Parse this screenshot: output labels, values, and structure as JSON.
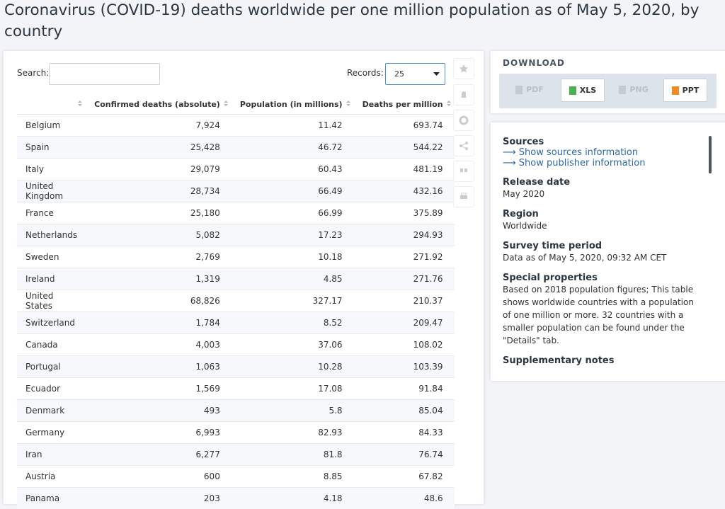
{
  "header": {
    "title": "Coronavirus (COVID-19) deaths worldwide per one million population as of May 5, 2020, by country"
  },
  "controls": {
    "search_label": "Search:",
    "records_label": "Records:",
    "records_value": "25"
  },
  "table": {
    "columns": [
      "Confirmed deaths (absolute)",
      "Population (in millions)",
      "Deaths per million"
    ],
    "rows": [
      [
        "Belgium",
        "7,924",
        "11.42",
        "693.74"
      ],
      [
        "Spain",
        "25,428",
        "46.72",
        "544.22"
      ],
      [
        "Italy",
        "29,079",
        "60.43",
        "481.19"
      ],
      [
        "United Kingdom",
        "28,734",
        "66.49",
        "432.16"
      ],
      [
        "France",
        "25,180",
        "66.99",
        "375.89"
      ],
      [
        "Netherlands",
        "5,082",
        "17.23",
        "294.93"
      ],
      [
        "Sweden",
        "2,769",
        "10.18",
        "271.92"
      ],
      [
        "Ireland",
        "1,319",
        "4.85",
        "271.76"
      ],
      [
        "United States",
        "68,826",
        "327.17",
        "210.37"
      ],
      [
        "Switzerland",
        "1,784",
        "8.52",
        "209.47"
      ],
      [
        "Canada",
        "4,003",
        "37.06",
        "108.02"
      ],
      [
        "Portugal",
        "1,063",
        "10.28",
        "103.39"
      ],
      [
        "Ecuador",
        "1,569",
        "17.08",
        "91.84"
      ],
      [
        "Denmark",
        "493",
        "5.8",
        "85.04"
      ],
      [
        "Germany",
        "6,993",
        "82.93",
        "84.33"
      ],
      [
        "Iran",
        "6,277",
        "81.8",
        "76.74"
      ],
      [
        "Austria",
        "600",
        "8.85",
        "67.82"
      ],
      [
        "Panama",
        "203",
        "4.18",
        "48.6"
      ]
    ]
  },
  "download": {
    "label": "DOWNLOAD",
    "buttons": [
      "PDF",
      "XLS",
      "PNG",
      "PPT"
    ]
  },
  "details": {
    "sources_label": "Sources",
    "links": [
      "Show sources information",
      "Show publisher information"
    ],
    "items": [
      {
        "label": "Release date",
        "value": "May 2020"
      },
      {
        "label": "Region",
        "value": "Worldwide"
      },
      {
        "label": "Survey time period",
        "value": "Data as of May 5, 2020, 09:32 AM CET"
      },
      {
        "label": "Special properties",
        "value": "Based on 2018 population figures; This table shows worldwide countries with a population of one million or more. 32 countries with a smaller population can be found under the \"Details\" tab."
      }
    ],
    "cut_label": "Supplementary notes"
  }
}
